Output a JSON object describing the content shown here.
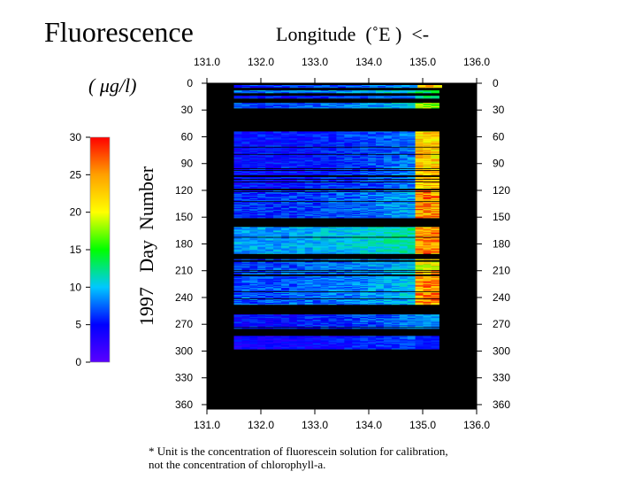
{
  "title": "Fluorescence",
  "unit_label": "( μg/l)",
  "footnote": [
    "* Unit is the concentration of fluorescein solution for calibration,",
    "not the concentration of chlorophyll-a."
  ],
  "chart_data": {
    "type": "heatmap",
    "xlabel": "Longitude  (˚E )  <-",
    "ylabel": "1997   Day  Number",
    "xlim": [
      131.0,
      136.0
    ],
    "ylim": [
      0,
      365
    ],
    "x_ticks": [
      "131.0",
      "132.0",
      "133.0",
      "134.0",
      "135.0",
      "136.0"
    ],
    "y_ticks": [
      "0",
      "30",
      "60",
      "90",
      "120",
      "150",
      "180",
      "210",
      "240",
      "270",
      "300",
      "330",
      "360"
    ],
    "y_reversed": true,
    "colorbar": {
      "min": 0,
      "max": 30,
      "ticks": [
        "0",
        "5",
        "10",
        "15",
        "20",
        "25",
        "30"
      ],
      "colormap": [
        "#5a00ff",
        "#0000ff",
        "#00c8ff",
        "#00ff00",
        "#ffff00",
        "#ffa000",
        "#ff0000"
      ]
    },
    "background_color": "#000000",
    "data_extent_longitude": [
      131.5,
      135.35
    ],
    "day_blocks": [
      {
        "days": [
          2,
          4
        ],
        "west_lon": 131.5,
        "east_lon": 135.35,
        "mean_value": 6,
        "east_value": 25
      },
      {
        "days": [
          8,
          10
        ],
        "west_lon": 131.5,
        "east_lon": 135.3,
        "mean_value": 8,
        "east_value": 14
      },
      {
        "days": [
          14,
          16
        ],
        "west_lon": 131.5,
        "east_lon": 135.3,
        "mean_value": 5,
        "east_value": 14
      },
      {
        "days": [
          22,
          27
        ],
        "west_lon": 131.5,
        "east_lon": 135.3,
        "mean_value": 7,
        "east_value": 20
      },
      {
        "days": [
          54,
          106
        ],
        "west_lon": 131.5,
        "east_lon": 135.3,
        "mean_value": 5,
        "east_value": 25
      },
      {
        "days": [
          108,
          117
        ],
        "west_lon": 131.5,
        "east_lon": 135.3,
        "mean_value": 5,
        "east_value": 25
      },
      {
        "days": [
          120,
          151
        ],
        "west_lon": 131.5,
        "east_lon": 135.3,
        "mean_value": 6,
        "east_value": 28
      },
      {
        "days": [
          160,
          190
        ],
        "west_lon": 131.5,
        "east_lon": 135.3,
        "mean_value": 9,
        "east_value": 28
      },
      {
        "days": [
          197,
          208
        ],
        "west_lon": 131.5,
        "east_lon": 135.3,
        "mean_value": 7,
        "east_value": 22
      },
      {
        "days": [
          210,
          247
        ],
        "west_lon": 131.5,
        "east_lon": 135.3,
        "mean_value": 7,
        "east_value": 28
      },
      {
        "days": [
          259,
          275
        ],
        "west_lon": 131.5,
        "east_lon": 135.3,
        "mean_value": 5,
        "east_value": 10
      },
      {
        "days": [
          283,
          297
        ],
        "west_lon": 131.5,
        "east_lon": 135.3,
        "mean_value": 4,
        "east_value": 6
      }
    ]
  }
}
